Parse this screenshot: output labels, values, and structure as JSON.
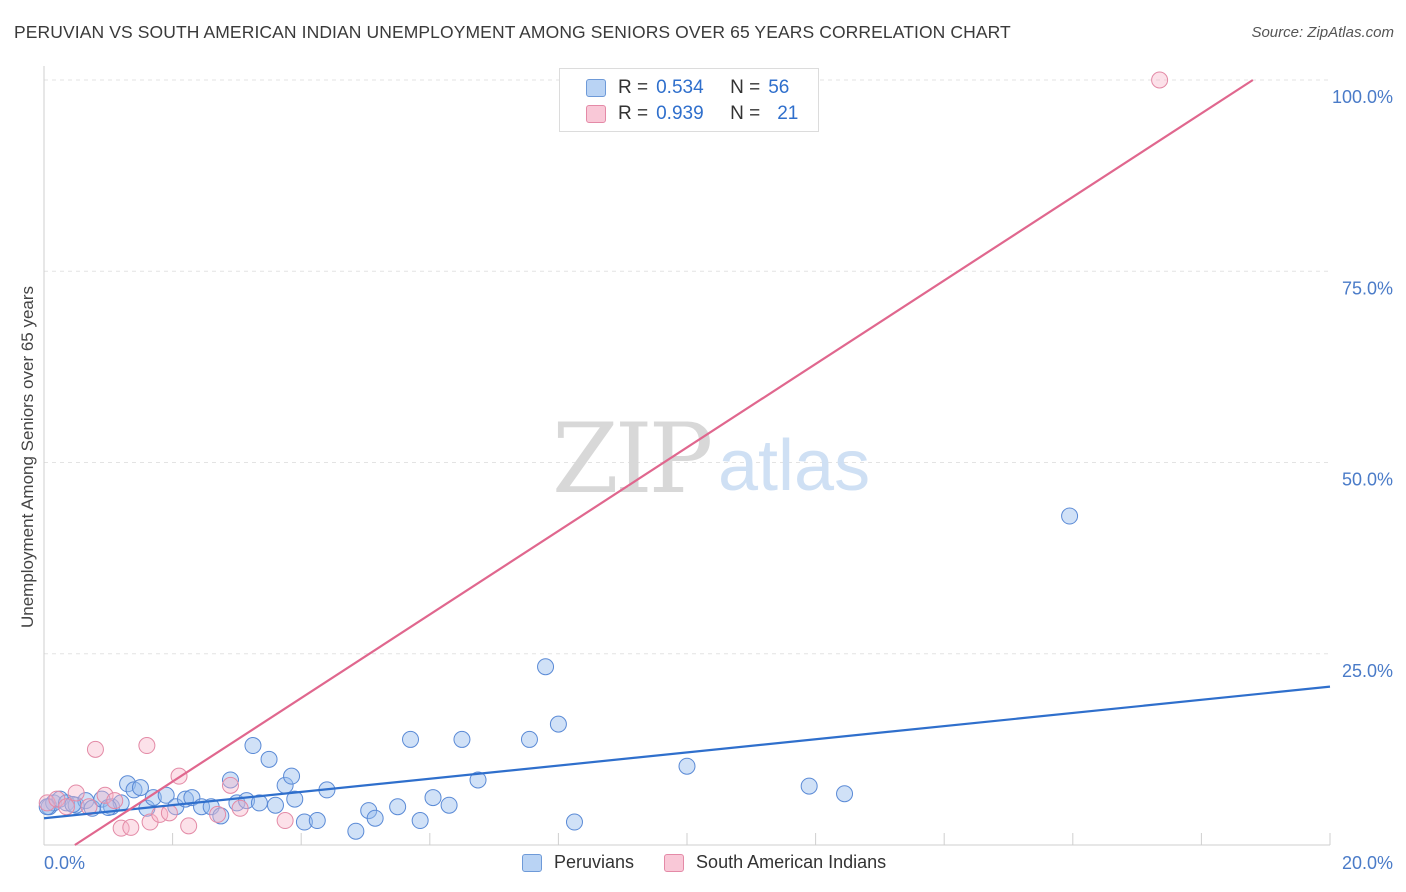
{
  "title": "PERUVIAN VS SOUTH AMERICAN INDIAN UNEMPLOYMENT AMONG SENIORS OVER 65 YEARS CORRELATION CHART",
  "source": "Source: ZipAtlas.com",
  "watermark": {
    "zip": "ZIP",
    "atlas": "atlas"
  },
  "legend": {
    "r_label": "R =",
    "n_label": "N =",
    "series": [
      {
        "name": "Peruvians",
        "r": "0.534",
        "n": "56",
        "fill": "#a9c8f0",
        "stroke": "#4a7bc8"
      },
      {
        "name": "South American Indians",
        "r": "0.939",
        "n": "21",
        "fill": "#f7b9cc",
        "stroke": "#e07a9a"
      }
    ]
  },
  "colors": {
    "blue_line": "#2f6fcc",
    "pink_line": "#e0678e",
    "blue_fill": "rgba(150,188,238,0.45)",
    "blue_stroke": "#5a8ad6",
    "pink_fill": "rgba(247,180,200,0.40)",
    "pink_stroke": "#e38aa6",
    "grid": "#e3e3e3",
    "axis_text": "#4a7bc8"
  },
  "chart_data": {
    "type": "scatter",
    "title": "PERUVIAN VS SOUTH AMERICAN INDIAN UNEMPLOYMENT AMONG SENIORS OVER 65 YEARS CORRELATION CHART",
    "xlabel": "",
    "ylabel": "Unemployment Among Seniors over 65 years",
    "xlim": [
      0,
      20
    ],
    "ylim": [
      0,
      100
    ],
    "x_tick_labels": [
      "0.0%",
      "20.0%"
    ],
    "y_ticks": [
      25,
      50,
      75,
      100
    ],
    "y_tick_labels": [
      "25.0%",
      "50.0%",
      "75.0%",
      "100.0%"
    ],
    "grid": true,
    "legend_position": "top-center",
    "series": [
      {
        "name": "Peruvians",
        "trend": {
          "x0": 0,
          "y0": 3.5,
          "x1": 20,
          "y1": 20.7
        },
        "points": [
          [
            0.08,
            5.0
          ],
          [
            0.15,
            5.5
          ],
          [
            0.25,
            6.0
          ],
          [
            0.35,
            5.5
          ],
          [
            0.5,
            5.2
          ],
          [
            0.65,
            5.8
          ],
          [
            0.75,
            4.8
          ],
          [
            0.9,
            6.0
          ],
          [
            1.05,
            5.0
          ],
          [
            1.2,
            5.5
          ],
          [
            1.3,
            8.0
          ],
          [
            1.4,
            7.2
          ],
          [
            1.5,
            7.5
          ],
          [
            1.6,
            4.8
          ],
          [
            1.7,
            6.2
          ],
          [
            1.9,
            6.5
          ],
          [
            2.05,
            5.0
          ],
          [
            2.2,
            6.0
          ],
          [
            2.3,
            6.2
          ],
          [
            2.45,
            5.0
          ],
          [
            2.6,
            5.0
          ],
          [
            2.75,
            3.8
          ],
          [
            2.9,
            8.5
          ],
          [
            3.0,
            5.5
          ],
          [
            3.15,
            5.8
          ],
          [
            3.25,
            13.0
          ],
          [
            3.35,
            5.5
          ],
          [
            3.5,
            11.2
          ],
          [
            3.6,
            5.2
          ],
          [
            3.75,
            7.8
          ],
          [
            3.85,
            9.0
          ],
          [
            3.9,
            6.0
          ],
          [
            4.05,
            3.0
          ],
          [
            4.25,
            3.2
          ],
          [
            4.4,
            7.2
          ],
          [
            4.85,
            1.8
          ],
          [
            5.05,
            4.5
          ],
          [
            5.15,
            3.5
          ],
          [
            5.5,
            5.0
          ],
          [
            5.7,
            13.8
          ],
          [
            5.85,
            3.2
          ],
          [
            6.05,
            6.2
          ],
          [
            6.3,
            5.2
          ],
          [
            6.5,
            13.8
          ],
          [
            6.75,
            8.5
          ],
          [
            7.55,
            13.8
          ],
          [
            7.8,
            23.3
          ],
          [
            8.0,
            15.8
          ],
          [
            8.25,
            3.0
          ],
          [
            10.0,
            10.3
          ],
          [
            11.9,
            7.7
          ],
          [
            12.45,
            6.7
          ],
          [
            15.95,
            43.0
          ],
          [
            0.05,
            5.0
          ],
          [
            0.45,
            5.3
          ],
          [
            1.0,
            4.9
          ]
        ]
      },
      {
        "name": "South American Indians",
        "trend": {
          "x0": 0.48,
          "y0": 0,
          "x1": 18.8,
          "y1": 100
        },
        "points": [
          [
            0.05,
            5.5
          ],
          [
            0.2,
            6.0
          ],
          [
            0.5,
            6.8
          ],
          [
            0.7,
            5.0
          ],
          [
            0.8,
            12.5
          ],
          [
            0.95,
            6.5
          ],
          [
            1.1,
            5.8
          ],
          [
            1.2,
            2.2
          ],
          [
            1.35,
            2.3
          ],
          [
            1.6,
            13.0
          ],
          [
            1.65,
            3.0
          ],
          [
            1.8,
            4.0
          ],
          [
            1.95,
            4.2
          ],
          [
            2.1,
            9.0
          ],
          [
            2.25,
            2.5
          ],
          [
            2.7,
            4.0
          ],
          [
            2.9,
            7.8
          ],
          [
            3.05,
            4.8
          ],
          [
            3.75,
            3.2
          ],
          [
            17.35,
            100.0
          ],
          [
            0.35,
            5.0
          ]
        ]
      }
    ]
  }
}
